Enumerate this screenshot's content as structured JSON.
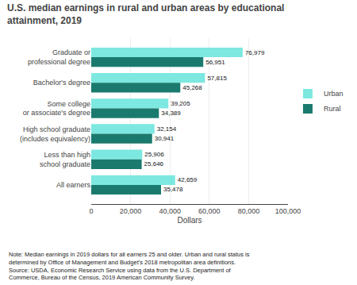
{
  "chart_data": {
    "type": "bar",
    "orientation": "horizontal",
    "title": "U.S. median earnings in rural and urban areas by educational\nattainment, 2019",
    "categories": [
      "All earners",
      "Less than high\nschool graduate",
      "High school graduate\n(includes equivalency)",
      "Some college\nor associate's degree",
      "Bachelor's degree",
      "Graduate or\nprofessional degree"
    ],
    "series": [
      {
        "name": "Urban",
        "color": "#7de8e0",
        "values": [
          42659,
          25906,
          32154,
          39205,
          57815,
          76979
        ],
        "value_labels": [
          "42,659",
          "25,906",
          "32,154",
          "39,205",
          "57,815",
          "76,979"
        ]
      },
      {
        "name": "Rural",
        "color": "#1b7a6e",
        "values": [
          35478,
          25646,
          30941,
          34389,
          45268,
          56951
        ],
        "value_labels": [
          "35,478",
          "25,646",
          "30,941",
          "34,389",
          "45,268",
          "56,951"
        ]
      }
    ],
    "xlabel": "Dollars",
    "xlim": [
      0,
      100000
    ],
    "xticks": [
      0,
      {
        "value": 20000,
        "label": "20,000"
      },
      {
        "value": 40000,
        "label": "40,000"
      },
      {
        "value": 60000,
        "label": "60,000"
      },
      {
        "value": 80000,
        "label": "80,000"
      },
      {
        "value": 100000,
        "label": "100,000"
      }
    ],
    "grid": true,
    "legend": "right",
    "data_labels": true,
    "annotations": [
      {
        "text": "Note: Median earnings in 2019 dollars for all earners 25 and older. Urban and rural status is\ndetermined by Office of Management and Budget's 2018 metropolitan area definitions.\nSource: USDA, Economic Research Service using data from the U.S. Department of\nCommerce, Bureau of the Census, 2019 American Community Survey."
      }
    ]
  }
}
